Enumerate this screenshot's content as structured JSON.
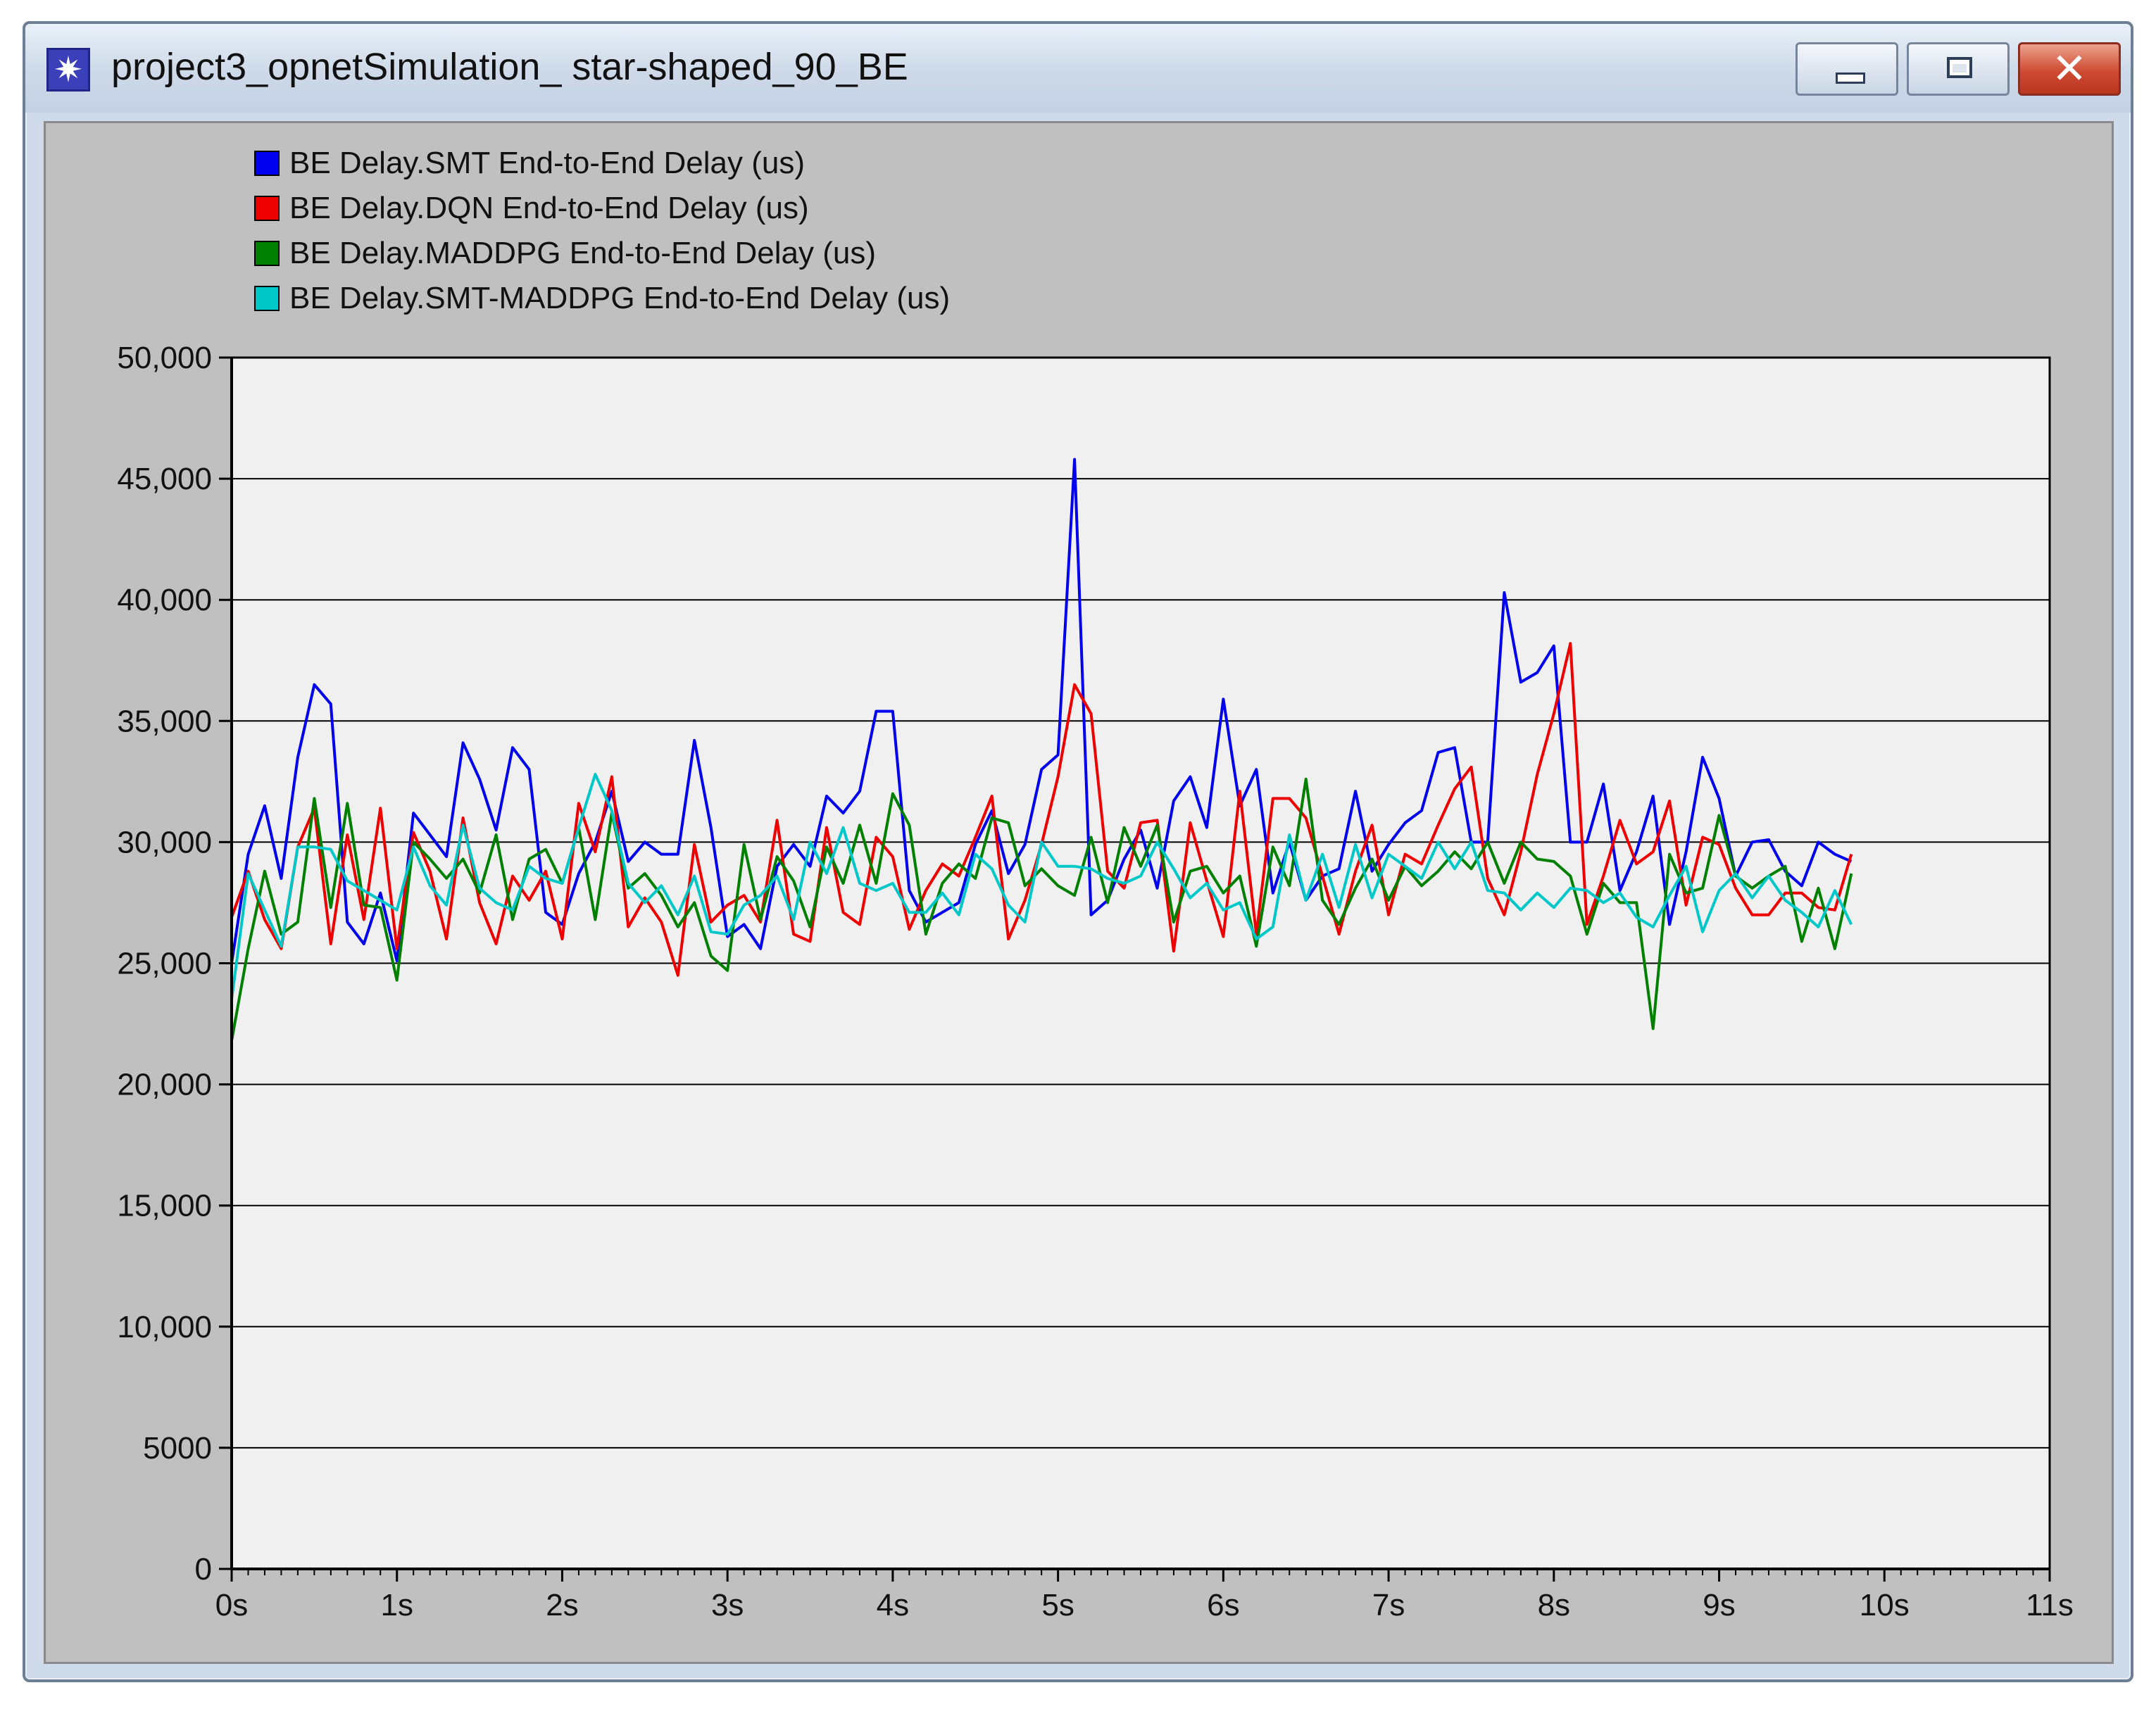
{
  "window": {
    "title": "project3_opnetSimulation_ star-shaped_90_BE",
    "icon": "opnet-app-icon",
    "controls": [
      "minimize-icon",
      "maximize-icon",
      "close-icon"
    ]
  },
  "chart_data": {
    "type": "line",
    "title": "",
    "xlabel": "",
    "ylabel": "",
    "xlim": [
      0,
      11
    ],
    "ylim": [
      0,
      50000
    ],
    "x_ticks": [
      0,
      1,
      2,
      3,
      4,
      5,
      6,
      7,
      8,
      9,
      10,
      11
    ],
    "x_tick_labels": [
      "0s",
      "1s",
      "2s",
      "3s",
      "4s",
      "5s",
      "6s",
      "7s",
      "8s",
      "9s",
      "10s",
      "11s"
    ],
    "y_ticks": [
      0,
      5000,
      10000,
      15000,
      20000,
      25000,
      30000,
      35000,
      40000,
      45000,
      50000
    ],
    "y_tick_labels": [
      "0",
      "5000",
      "10,000",
      "15,000",
      "20,000",
      "25,000",
      "30,000",
      "35,000",
      "40,000",
      "45,000",
      "50,000"
    ],
    "grid": "horizontal",
    "legend_position": "top-left",
    "x": [
      0.0,
      0.1,
      0.2,
      0.3,
      0.4,
      0.5,
      0.6,
      0.7,
      0.8,
      0.9,
      1.0,
      1.1,
      1.2,
      1.3,
      1.4,
      1.5,
      1.6,
      1.7,
      1.8,
      1.9,
      2.0,
      2.1,
      2.2,
      2.3,
      2.4,
      2.5,
      2.6,
      2.7,
      2.8,
      2.9,
      3.0,
      3.1,
      3.2,
      3.3,
      3.4,
      3.5,
      3.6,
      3.7,
      3.8,
      3.9,
      4.0,
      4.1,
      4.2,
      4.3,
      4.4,
      4.5,
      4.6,
      4.7,
      4.8,
      4.9,
      5.0,
      5.1,
      5.2,
      5.3,
      5.4,
      5.5,
      5.6,
      5.7,
      5.8,
      5.9,
      6.0,
      6.1,
      6.2,
      6.3,
      6.4,
      6.5,
      6.6,
      6.7,
      6.8,
      6.9,
      7.0,
      7.1,
      7.2,
      7.3,
      7.4,
      7.5,
      7.6,
      7.7,
      7.8,
      7.9,
      8.0,
      8.1,
      8.2,
      8.3,
      8.4,
      8.5,
      8.6,
      8.7,
      8.8,
      8.9,
      9.0,
      9.1,
      9.2,
      9.3,
      9.4,
      9.5,
      9.6,
      9.7,
      9.8
    ],
    "series": [
      {
        "name": "BE Delay.SMT End-to-End Delay (us)",
        "color": "#0000ee",
        "values": [
          25000,
          29500,
          31500,
          28500,
          33500,
          36500,
          35700,
          26700,
          25800,
          27900,
          25100,
          31200,
          30300,
          29400,
          34100,
          32600,
          30500,
          33900,
          33000,
          27100,
          26600,
          28700,
          30000,
          32100,
          29200,
          30000,
          29500,
          29500,
          34200,
          30600,
          26100,
          26600,
          25600,
          29000,
          29900,
          29000,
          31900,
          31200,
          32100,
          35400,
          35400,
          28000,
          26700,
          27100,
          27500,
          29900,
          31300,
          28700,
          29900,
          33000,
          33600,
          45800,
          27000,
          27600,
          29300,
          30500,
          28100,
          31700,
          32700,
          30600,
          35900,
          31500,
          33000,
          27900,
          30000,
          27600,
          28600,
          28900,
          32100,
          28800,
          29900,
          30800,
          31300,
          33700,
          33900,
          30000,
          30000,
          40300,
          36600,
          37000,
          38100,
          30000,
          30000,
          32400,
          28000,
          29600,
          31900,
          26600,
          29600,
          33500,
          31800,
          28600,
          30000,
          30100,
          28800,
          28200,
          30000,
          29500,
          29200
        ]
      },
      {
        "name": "BE Delay.DQN End-to-End Delay (us)",
        "color": "#ee0000",
        "values": [
          26900,
          28800,
          26800,
          25600,
          29800,
          31400,
          25800,
          30300,
          26800,
          31400,
          25600,
          30400,
          28800,
          26000,
          31000,
          27500,
          25800,
          28600,
          27600,
          28800,
          26000,
          31600,
          29600,
          32700,
          26500,
          27700,
          26700,
          24500,
          29900,
          26700,
          27400,
          27800,
          26700,
          30900,
          26200,
          25900,
          30600,
          27100,
          26600,
          30200,
          29400,
          26400,
          28000,
          29100,
          28600,
          30200,
          31900,
          26000,
          27600,
          29900,
          32700,
          36500,
          35300,
          28800,
          28100,
          30800,
          30900,
          25500,
          30800,
          28400,
          26100,
          32100,
          26200,
          31800,
          31800,
          31000,
          28600,
          26200,
          28800,
          30700,
          27000,
          29500,
          29100,
          30700,
          32200,
          33100,
          28500,
          27000,
          29600,
          32800,
          35300,
          38200,
          26600,
          28600,
          30900,
          29100,
          29600,
          31700,
          27400,
          30200,
          29900,
          28100,
          27000,
          27000,
          27900,
          27900,
          27300,
          27200,
          29500
        ]
      },
      {
        "name": "BE Delay.MADDPG End-to-End Delay (us)",
        "color": "#008000",
        "values": [
          21800,
          25600,
          28800,
          26200,
          26700,
          31800,
          27300,
          31600,
          27400,
          27300,
          24300,
          30000,
          29300,
          28500,
          29300,
          27900,
          30300,
          26800,
          29300,
          29700,
          28300,
          30600,
          26800,
          31200,
          28100,
          28700,
          27800,
          26500,
          27500,
          25300,
          24700,
          29900,
          26800,
          29400,
          28400,
          26500,
          29800,
          28300,
          30700,
          28300,
          32000,
          30700,
          26200,
          28300,
          29100,
          28500,
          31000,
          30800,
          28200,
          28900,
          28200,
          27800,
          30200,
          27500,
          30600,
          29000,
          30700,
          26700,
          28800,
          29000,
          27900,
          28600,
          25700,
          29800,
          28200,
          32600,
          27600,
          26600,
          28100,
          29300,
          27600,
          29000,
          28200,
          28800,
          29600,
          28900,
          30000,
          28300,
          30000,
          29300,
          29200,
          28600,
          26200,
          28300,
          27500,
          27500,
          22300,
          29500,
          27900,
          28100,
          31100,
          28600,
          28100,
          28600,
          29000,
          25900,
          28100,
          25600,
          28700
        ]
      },
      {
        "name": "BE Delay.SMT-MADDPG End-to-End Delay (us)",
        "color": "#00c8c8",
        "values": [
          23500,
          28700,
          27200,
          25700,
          29800,
          29800,
          29700,
          28400,
          28000,
          27600,
          27200,
          29800,
          28200,
          27400,
          30700,
          28100,
          27500,
          27200,
          29000,
          28500,
          28300,
          30600,
          32800,
          31300,
          28300,
          27500,
          28200,
          27000,
          28600,
          26300,
          26200,
          27400,
          27800,
          28600,
          26800,
          30000,
          28700,
          30600,
          28300,
          28000,
          28300,
          27100,
          27100,
          27900,
          27000,
          29500,
          28900,
          27400,
          26700,
          30000,
          29000,
          29000,
          28900,
          28500,
          28300,
          28600,
          30000,
          28900,
          27700,
          28300,
          27200,
          27500,
          26000,
          26500,
          30300,
          27600,
          29500,
          27300,
          29900,
          27700,
          29500,
          29000,
          28500,
          30000,
          28900,
          30000,
          28000,
          27900,
          27200,
          27900,
          27300,
          28100,
          28000,
          27500,
          27900,
          26900,
          26500,
          27800,
          29000,
          26300,
          28000,
          28700,
          27700,
          28600,
          27600,
          27100,
          26500,
          28000,
          26600
        ]
      }
    ]
  }
}
